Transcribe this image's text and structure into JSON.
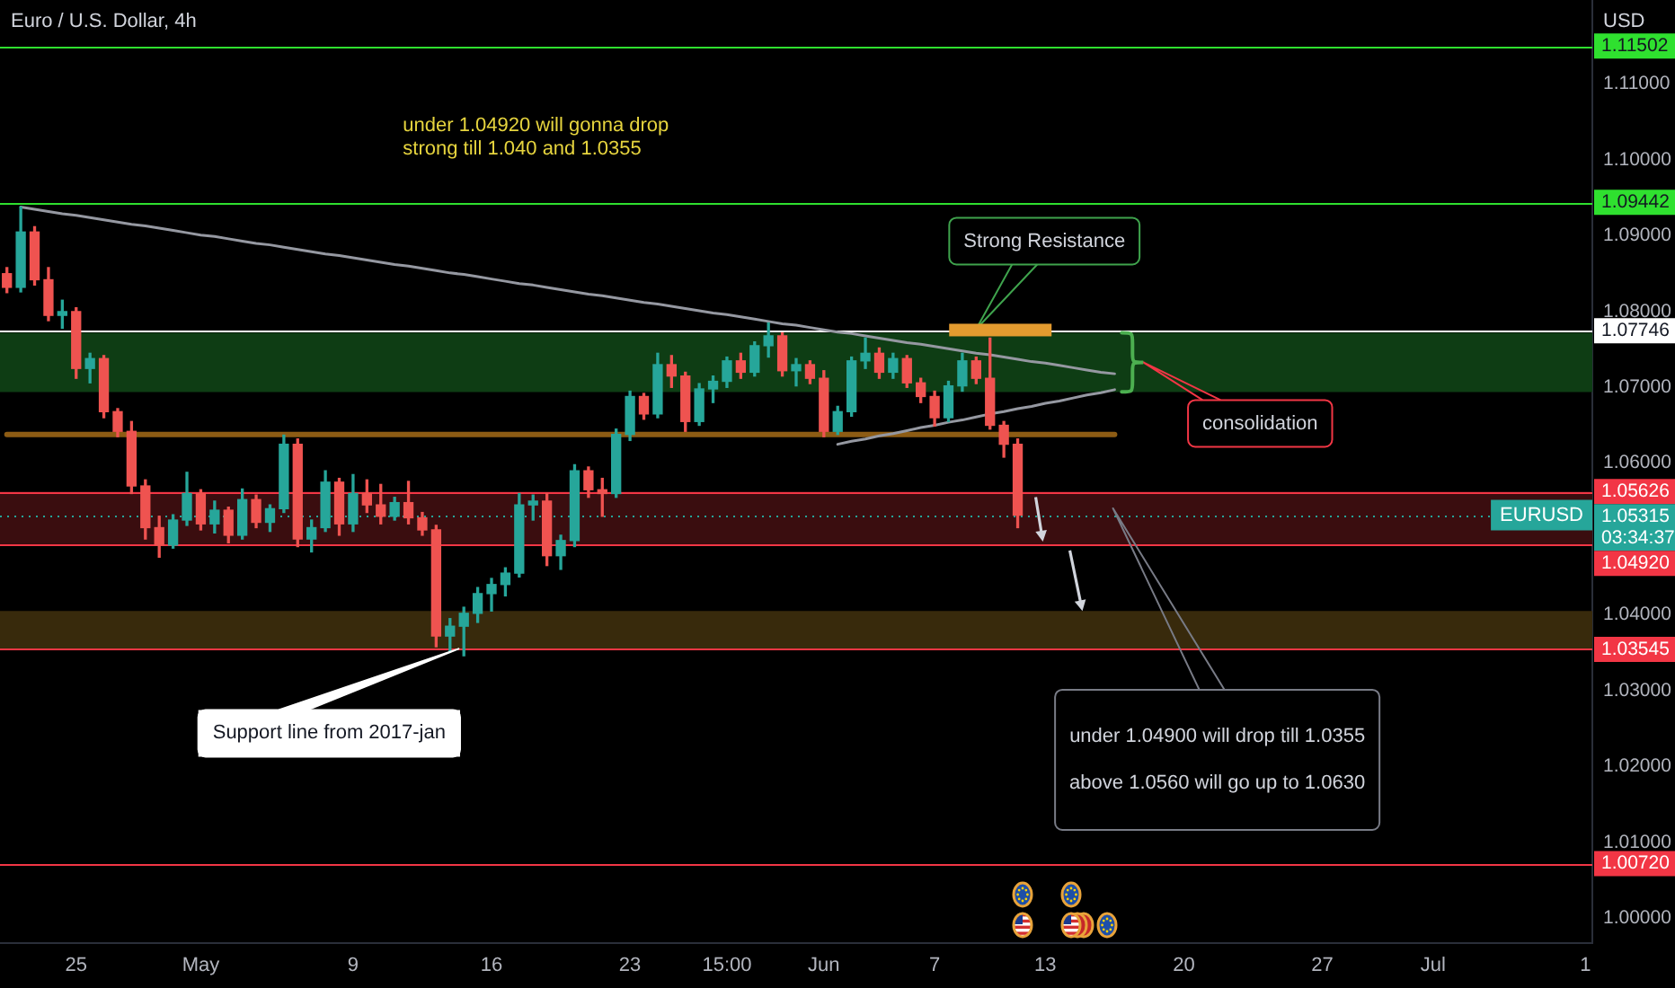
{
  "chart_data": {
    "type": "candlestick",
    "title": "Euro / U.S. Dollar, 4h",
    "ylabel": "USD",
    "categories": [
      null,
      null,
      null,
      null,
      null,
      "25",
      null,
      null,
      null,
      null,
      null,
      null,
      null,
      null,
      "May",
      null,
      null,
      null,
      null,
      null,
      null,
      null,
      null,
      null,
      null,
      "9",
      null,
      null,
      null,
      null,
      null,
      null,
      null,
      null,
      null,
      "16",
      null,
      null,
      null,
      null,
      null,
      null,
      null,
      null,
      null,
      "23",
      null,
      null,
      null,
      null,
      null,
      null,
      "15:00",
      null,
      null,
      null,
      null,
      null,
      null,
      "Jun",
      null,
      null,
      null,
      null,
      null,
      null,
      null,
      "7",
      null,
      null,
      null,
      null,
      null,
      null,
      null,
      "13",
      null,
      null,
      null,
      null,
      null,
      null,
      null,
      null,
      null,
      "20",
      null,
      null,
      null,
      null,
      null,
      null,
      null,
      null,
      null,
      "27",
      null,
      null,
      null,
      null,
      null,
      null,
      null,
      "Jul",
      null,
      null,
      null,
      null,
      null,
      null,
      null,
      null,
      null,
      null,
      "1"
    ],
    "ohlc": [
      [
        1.085,
        1.0858,
        1.0825,
        1.0832
      ],
      [
        1.0832,
        1.0938,
        1.0826,
        1.0905
      ],
      [
        1.0905,
        1.0912,
        1.0835,
        1.0842
      ],
      [
        1.0842,
        1.0858,
        1.0788,
        1.0795
      ],
      [
        1.0795,
        1.0815,
        1.0778,
        1.08
      ],
      [
        1.08,
        1.0805,
        1.0712,
        1.0725
      ],
      [
        1.0725,
        1.0745,
        1.0706,
        1.0738
      ],
      [
        1.0738,
        1.0742,
        1.066,
        1.0668
      ],
      [
        1.0668,
        1.0672,
        1.0635,
        1.0642
      ],
      [
        1.0642,
        1.0655,
        1.056,
        1.057
      ],
      [
        1.057,
        1.0578,
        1.05,
        1.0515
      ],
      [
        1.0515,
        1.053,
        1.0476,
        1.0492
      ],
      [
        1.0492,
        1.0532,
        1.0488,
        1.0525
      ],
      [
        1.0525,
        1.0588,
        1.0518,
        1.056
      ],
      [
        1.056,
        1.0565,
        1.0512,
        1.052
      ],
      [
        1.052,
        1.055,
        1.0508,
        1.0538
      ],
      [
        1.0538,
        1.0542,
        1.0495,
        1.0505
      ],
      [
        1.0505,
        1.0566,
        1.05,
        1.0552
      ],
      [
        1.0552,
        1.0558,
        1.0515,
        1.0522
      ],
      [
        1.0522,
        1.0545,
        1.051,
        1.054
      ],
      [
        1.054,
        1.0637,
        1.0535,
        1.0625
      ],
      [
        1.0625,
        1.0632,
        1.049,
        1.05
      ],
      [
        1.05,
        1.0525,
        1.0483,
        1.0515
      ],
      [
        1.0515,
        1.059,
        1.051,
        1.0575
      ],
      [
        1.0575,
        1.058,
        1.0505,
        1.052
      ],
      [
        1.052,
        1.0585,
        1.051,
        1.056
      ],
      [
        1.056,
        1.0578,
        1.0535,
        1.0545
      ],
      [
        1.0545,
        1.0572,
        1.052,
        1.053
      ],
      [
        1.053,
        1.0555,
        1.0525,
        1.0548
      ],
      [
        1.0548,
        1.0576,
        1.052,
        1.0528
      ],
      [
        1.0528,
        1.0535,
        1.0505,
        1.0512
      ],
      [
        1.0512,
        1.0518,
        1.0358,
        1.0372
      ],
      [
        1.0372,
        1.0395,
        1.0352,
        1.0385
      ],
      [
        1.0385,
        1.041,
        1.0346,
        1.0402
      ],
      [
        1.0402,
        1.0436,
        1.039,
        1.0428
      ],
      [
        1.0428,
        1.0448,
        1.0405,
        1.044
      ],
      [
        1.044,
        1.0462,
        1.0425,
        1.0455
      ],
      [
        1.0455,
        1.056,
        1.045,
        1.0545
      ],
      [
        1.0545,
        1.0558,
        1.0525,
        1.055
      ],
      [
        1.055,
        1.056,
        1.0465,
        1.0478
      ],
      [
        1.0478,
        1.0505,
        1.046,
        1.0498
      ],
      [
        1.0498,
        1.0598,
        1.049,
        1.059
      ],
      [
        1.059,
        1.0595,
        1.0555,
        1.0565
      ],
      [
        1.0565,
        1.058,
        1.053,
        1.056
      ],
      [
        1.056,
        1.0645,
        1.0555,
        1.0638
      ],
      [
        1.0638,
        1.0695,
        1.063,
        1.0688
      ],
      [
        1.0688,
        1.0692,
        1.0658,
        1.0665
      ],
      [
        1.0665,
        1.0745,
        1.066,
        1.073
      ],
      [
        1.073,
        1.0742,
        1.07,
        1.0715
      ],
      [
        1.0715,
        1.072,
        1.0642,
        1.0655
      ],
      [
        1.0655,
        1.0705,
        1.065,
        1.0698
      ],
      [
        1.0698,
        1.0715,
        1.068,
        1.0708
      ],
      [
        1.0708,
        1.074,
        1.07,
        1.0735
      ],
      [
        1.0735,
        1.0745,
        1.0712,
        1.072
      ],
      [
        1.072,
        1.076,
        1.0715,
        1.0755
      ],
      [
        1.0755,
        1.0785,
        1.074,
        1.0768
      ],
      [
        1.0768,
        1.0772,
        1.0715,
        1.0722
      ],
      [
        1.0722,
        1.0738,
        1.0702,
        1.073
      ],
      [
        1.073,
        1.0735,
        1.0705,
        1.0712
      ],
      [
        1.0712,
        1.0722,
        1.0635,
        1.0642
      ],
      [
        1.0642,
        1.0675,
        1.0638,
        1.0668
      ],
      [
        1.0668,
        1.074,
        1.0662,
        1.0735
      ],
      [
        1.0735,
        1.0765,
        1.0725,
        1.0745
      ],
      [
        1.0745,
        1.0752,
        1.0712,
        1.072
      ],
      [
        1.072,
        1.0745,
        1.0712,
        1.0738
      ],
      [
        1.0738,
        1.0742,
        1.07,
        1.0706
      ],
      [
        1.0706,
        1.0712,
        1.068,
        1.0688
      ],
      [
        1.0688,
        1.0695,
        1.0649,
        1.066
      ],
      [
        1.066,
        1.0708,
        1.0655,
        1.0702
      ],
      [
        1.0702,
        1.0745,
        1.0695,
        1.0735
      ],
      [
        1.0735,
        1.074,
        1.0705,
        1.0712
      ],
      [
        1.0712,
        1.0765,
        1.0645,
        1.065
      ],
      [
        1.065,
        1.0655,
        1.0608,
        1.0625
      ],
      [
        1.0625,
        1.0632,
        1.0515,
        1.05315
      ],
      null,
      null,
      null,
      null,
      null,
      null,
      null,
      null,
      null,
      null,
      null,
      null,
      null,
      null,
      null,
      null,
      null,
      null,
      null,
      null,
      null,
      null,
      null,
      null,
      null,
      null,
      null,
      null,
      null,
      null,
      null,
      null,
      null,
      null,
      null,
      null,
      null,
      null,
      null,
      null,
      null
    ],
    "colors": [
      "#ef5350",
      "#26a69a",
      "#ef5350",
      "#ef5350",
      "#26a69a",
      "#ef5350",
      "#26a69a",
      "#ef5350",
      "#ef5350",
      "#ef5350",
      "#ef5350",
      "#ef5350",
      "#26a69a",
      "#26a69a",
      "#ef5350",
      "#26a69a",
      "#ef5350",
      "#26a69a",
      "#ef5350",
      "#26a69a",
      "#26a69a",
      "#ef5350",
      "#26a69a",
      "#26a69a",
      "#ef5350",
      "#26a69a",
      "#ef5350",
      "#ef5350",
      "#26a69a",
      "#ef5350",
      "#ef5350",
      "#ef5350",
      "#26a69a",
      "#26a69a",
      "#26a69a",
      "#26a69a",
      "#26a69a",
      "#26a69a",
      "#26a69a",
      "#ef5350",
      "#26a69a",
      "#26a69a",
      "#ef5350",
      "#ef5350",
      "#26a69a",
      "#26a69a",
      "#ef5350",
      "#26a69a",
      "#ef5350",
      "#ef5350",
      "#26a69a",
      "#26a69a",
      "#26a69a",
      "#ef5350",
      "#26a69a",
      "#26a69a",
      "#ef5350",
      "#26a69a",
      "#ef5350",
      "#ef5350",
      "#26a69a",
      "#26a69a",
      "#26a69a",
      "#ef5350",
      "#26a69a",
      "#ef5350",
      "#ef5350",
      "#ef5350",
      "#26a69a",
      "#26a69a",
      "#ef5350",
      "#ef5350",
      "#ef5350",
      "#ef5350",
      null,
      null,
      null,
      null,
      null,
      null,
      null,
      null,
      null,
      null,
      null,
      null,
      null,
      null,
      null,
      null,
      null,
      null,
      null,
      null,
      null,
      null,
      null,
      null,
      null,
      null,
      null,
      null,
      null,
      null,
      null,
      null,
      null,
      null,
      null,
      null,
      null,
      null,
      null,
      null,
      null
    ],
    "series": [
      {
        "type": "line",
        "color": "#9598a1",
        "values": [
          null,
          1.0938,
          1.0935,
          1.0932,
          1.0929,
          1.0927,
          1.0924,
          1.0921,
          1.0918,
          1.0915,
          1.0913,
          1.091,
          1.0907,
          1.0904,
          1.0901,
          1.0899,
          1.0896,
          1.0893,
          1.089,
          1.0888,
          1.0885,
          1.0882,
          1.0879,
          1.0876,
          1.0874,
          1.0871,
          1.0868,
          1.0865,
          1.0862,
          1.086,
          1.0857,
          1.0854,
          1.0851,
          1.0849,
          1.0846,
          1.0843,
          1.084,
          1.0837,
          1.0835,
          1.0832,
          1.0829,
          1.0826,
          1.0823,
          1.0821,
          1.0818,
          1.0815,
          1.0812,
          1.081,
          1.0807,
          1.0804,
          1.0801,
          1.0798,
          1.0796,
          1.0793,
          1.079,
          1.0787,
          1.0784,
          1.0782,
          1.0779,
          1.0776,
          1.0773,
          1.0771,
          1.0768,
          1.0765,
          1.0762,
          1.0759,
          1.0757,
          1.0754,
          1.0751,
          1.0748,
          1.0745,
          1.0743,
          1.074,
          1.0737,
          1.0734,
          1.0732,
          1.0729,
          1.0726,
          1.0723,
          1.072,
          1.0718,
          null,
          null,
          null,
          null,
          null,
          null,
          null,
          null,
          null,
          null,
          null,
          null,
          null,
          null,
          null,
          null,
          null,
          null,
          null,
          null,
          null,
          null,
          null,
          null,
          null,
          null,
          null,
          null,
          null,
          null,
          null,
          null,
          null,
          null
        ]
      },
      {
        "type": "line",
        "color": "#9598a1",
        "values": [
          null,
          null,
          null,
          null,
          null,
          null,
          null,
          null,
          null,
          null,
          null,
          null,
          null,
          null,
          null,
          null,
          null,
          null,
          null,
          null,
          null,
          null,
          null,
          null,
          null,
          null,
          null,
          null,
          null,
          null,
          null,
          null,
          null,
          null,
          null,
          null,
          null,
          null,
          null,
          null,
          null,
          null,
          null,
          null,
          null,
          null,
          null,
          null,
          null,
          null,
          null,
          null,
          null,
          null,
          null,
          null,
          null,
          null,
          null,
          null,
          1.0625,
          1.0629,
          1.0632,
          1.0636,
          1.0639,
          1.0643,
          1.0647,
          1.065,
          1.0654,
          1.0657,
          1.0661,
          1.0665,
          1.0668,
          1.0672,
          1.0675,
          1.0679,
          1.0682,
          1.0686,
          1.069,
          1.0693,
          1.0697,
          null,
          null,
          null,
          null,
          null,
          null,
          null,
          null,
          null,
          null,
          null,
          null,
          null,
          null,
          null,
          null,
          null,
          null,
          null,
          null,
          null,
          null,
          null,
          null,
          null,
          null,
          null,
          null,
          null,
          null,
          null,
          null,
          null,
          null
        ]
      },
      {
        "type": "line",
        "color": "#8d5c14",
        "values": [
          1.0638,
          1.0638,
          1.0638,
          1.0638,
          1.0638,
          1.0638,
          1.0638,
          1.0638,
          1.0638,
          1.0638,
          1.0638,
          1.0638,
          1.0638,
          1.0638,
          1.0638,
          1.0638,
          1.0638,
          1.0638,
          1.0638,
          1.0638,
          1.0638,
          1.0638,
          1.0638,
          1.0638,
          1.0638,
          1.0638,
          1.0638,
          1.0638,
          1.0638,
          1.0638,
          1.0638,
          1.0638,
          1.0638,
          1.0638,
          1.0638,
          1.0638,
          1.0638,
          1.0638,
          1.0638,
          1.0638,
          1.0638,
          1.0638,
          1.0638,
          1.0638,
          1.0638,
          1.0638,
          1.0638,
          1.0638,
          1.0638,
          1.0638,
          1.0638,
          1.0638,
          1.0638,
          1.0638,
          1.0638,
          1.0638,
          1.0638,
          1.0638,
          1.0638,
          1.0638,
          1.0638,
          1.0638,
          1.0638,
          1.0638,
          1.0638,
          1.0638,
          1.0638,
          1.0638,
          1.0638,
          1.0638,
          1.0638,
          1.0638,
          1.0638,
          1.0638,
          1.0638,
          1.0638,
          1.0638,
          1.0638,
          1.0638,
          1.0638,
          1.0638,
          null,
          null,
          null,
          null,
          null,
          null,
          null,
          null,
          null,
          null,
          null,
          null,
          null,
          null,
          null,
          null,
          null,
          null,
          null,
          null,
          null,
          null,
          null,
          null,
          null,
          null,
          null,
          null,
          null,
          null,
          null,
          null,
          null,
          null
        ]
      }
    ],
    "ylim": [
      0.9967,
      1.1211
    ],
    "yticks": [
      {
        "value": 1.0,
        "label": "1.00000"
      },
      {
        "value": 1.01,
        "label": "1.01000"
      },
      {
        "value": 1.02,
        "label": "1.02000"
      },
      {
        "value": 1.03,
        "label": "1.03000"
      },
      {
        "value": 1.04,
        "label": "1.04000"
      },
      {
        "value": 1.06,
        "label": "1.06000"
      },
      {
        "value": 1.07,
        "label": "1.07000"
      },
      {
        "value": 1.08,
        "label": "1.08000"
      },
      {
        "value": 1.09,
        "label": "1.09000"
      },
      {
        "value": 1.1,
        "label": "1.10000"
      },
      {
        "value": 1.11,
        "label": "1.11000"
      }
    ],
    "bands": [
      {
        "axis": "y",
        "from": 1.0694,
        "to": 1.0772,
        "color": "#0e3d14"
      },
      {
        "axis": "y",
        "from": 1.0492,
        "to": 1.05626,
        "color": "#3a0d0f"
      },
      {
        "axis": "y",
        "from": 1.03545,
        "to": 1.0405,
        "color": "#382a0c"
      }
    ],
    "ref_lines": [
      {
        "axis": "y",
        "value": 1.11502,
        "label": "1.11502",
        "color": "#2fe02f"
      },
      {
        "axis": "y",
        "value": 1.09442,
        "label": "1.09442",
        "color": "#2fe02f"
      },
      {
        "axis": "y",
        "value": 1.07746,
        "label": "1.07746",
        "color": "#ffffff"
      },
      {
        "axis": "y",
        "value": 1.05626,
        "label": "1.05626",
        "color": "#f23645"
      },
      {
        "axis": "y",
        "value": 1.05315,
        "label": "1.05315",
        "color": "#26a69a",
        "line_style": "dotted"
      },
      {
        "axis": "y",
        "value": 1.0492,
        "label": "1.04920",
        "color": "#f23645"
      },
      {
        "axis": "y",
        "value": 1.03545,
        "label": "1.03545",
        "color": "#f23645"
      },
      {
        "axis": "y",
        "value": 1.0072,
        "label": "1.00720",
        "color": "#f23645"
      }
    ],
    "annotations": [
      "under 1.04920 will gonna drop\nstrong till 1.040 and 1.0355",
      "Strong Resistance",
      "consolidation",
      "Support line from 2017-jan",
      "under 1.04900 will drop till 1.0355",
      "above 1.0560 will go up to 1.0630",
      {
        "text": "EURUSD",
        "y": 1.05315
      },
      "03:34:37"
    ]
  }
}
